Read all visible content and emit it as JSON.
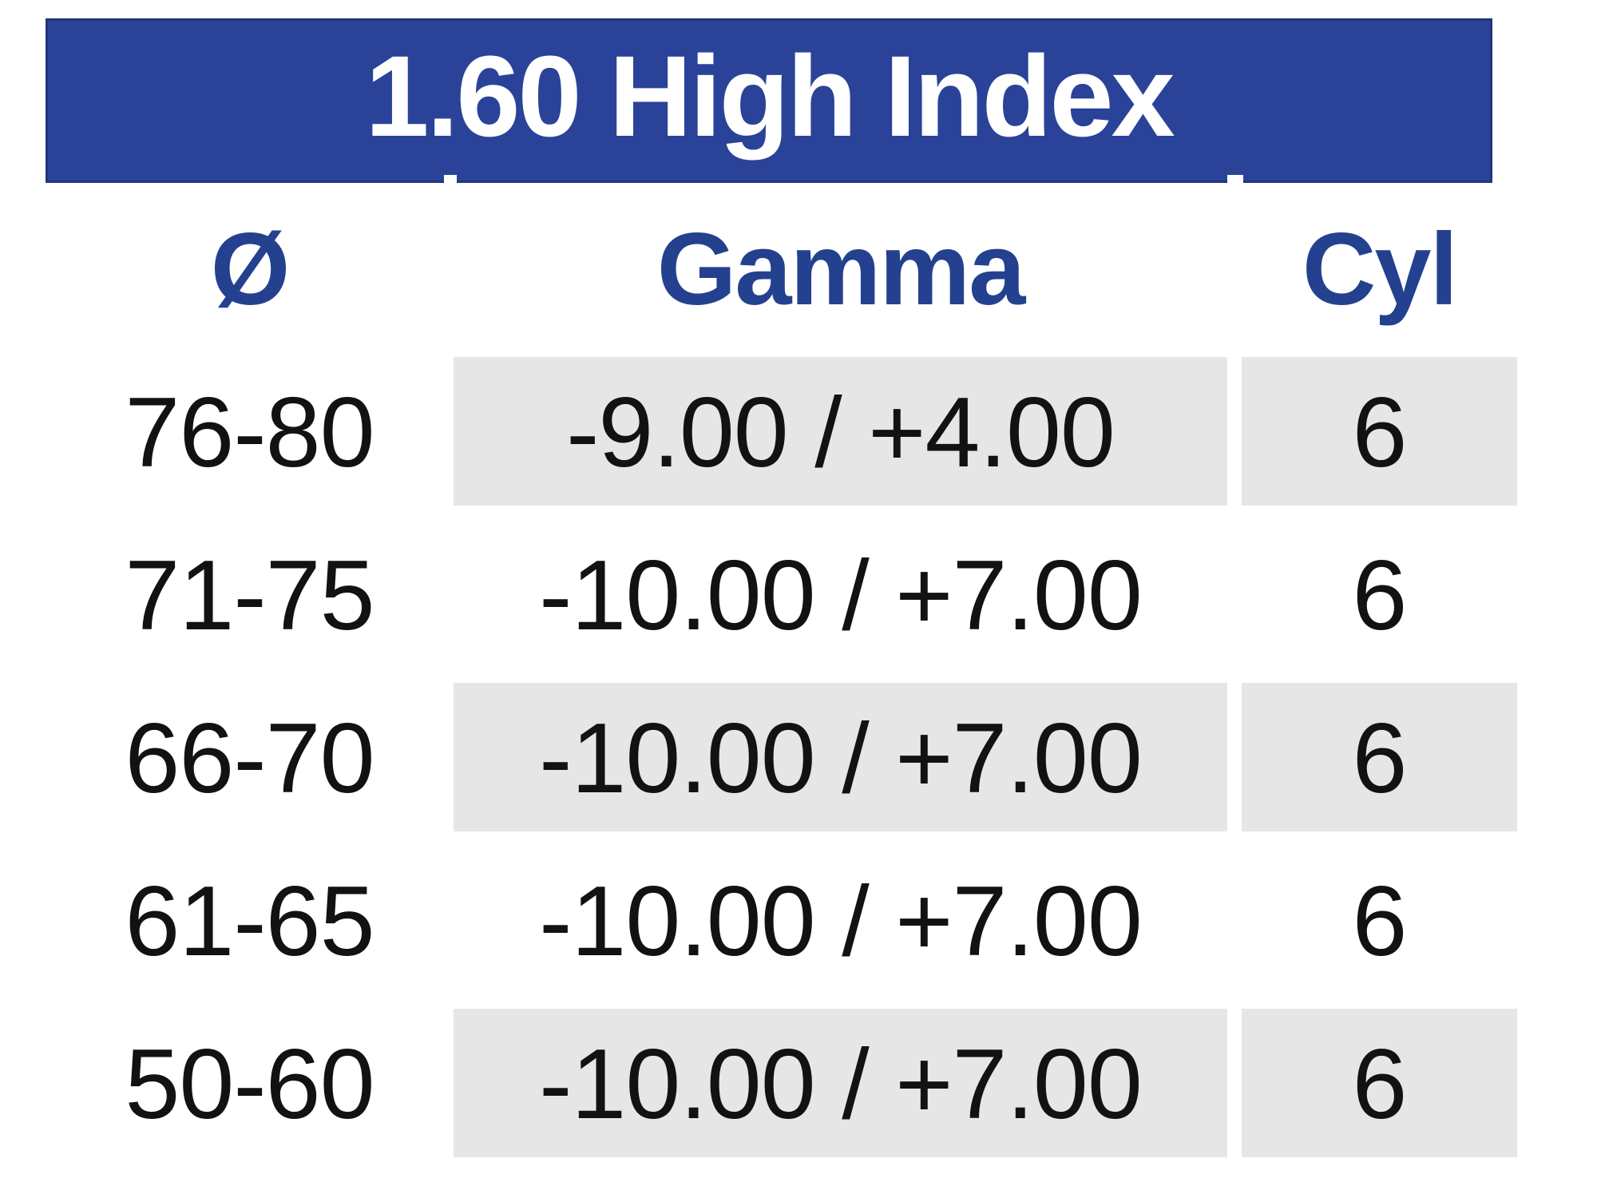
{
  "title": "1.60 High Index",
  "columns": [
    {
      "key": "diameter",
      "label": "Ø"
    },
    {
      "key": "gamma",
      "label": "Gamma"
    },
    {
      "key": "cyl",
      "label": "Cyl"
    }
  ],
  "rows": [
    {
      "diameter": "76-80",
      "gamma": "-9.00 / +4.00",
      "cyl": "6",
      "shaded": true
    },
    {
      "diameter": "71-75",
      "gamma": "-10.00 / +7.00",
      "cyl": "6",
      "shaded": false
    },
    {
      "diameter": "66-70",
      "gamma": "-10.00 / +7.00",
      "cyl": "6",
      "shaded": true
    },
    {
      "diameter": "61-65",
      "gamma": "-10.00 / +7.00",
      "cyl": "6",
      "shaded": false
    },
    {
      "diameter": "50-60",
      "gamma": "-10.00 / +7.00",
      "cyl": "6",
      "shaded": true
    }
  ],
  "colors": {
    "title_bar_bg": "#2a4399",
    "title_text": "#ffffff",
    "column_header_text": "#24418f",
    "shaded_cell_bg": "#e6e6e6",
    "body_text": "#121212"
  }
}
